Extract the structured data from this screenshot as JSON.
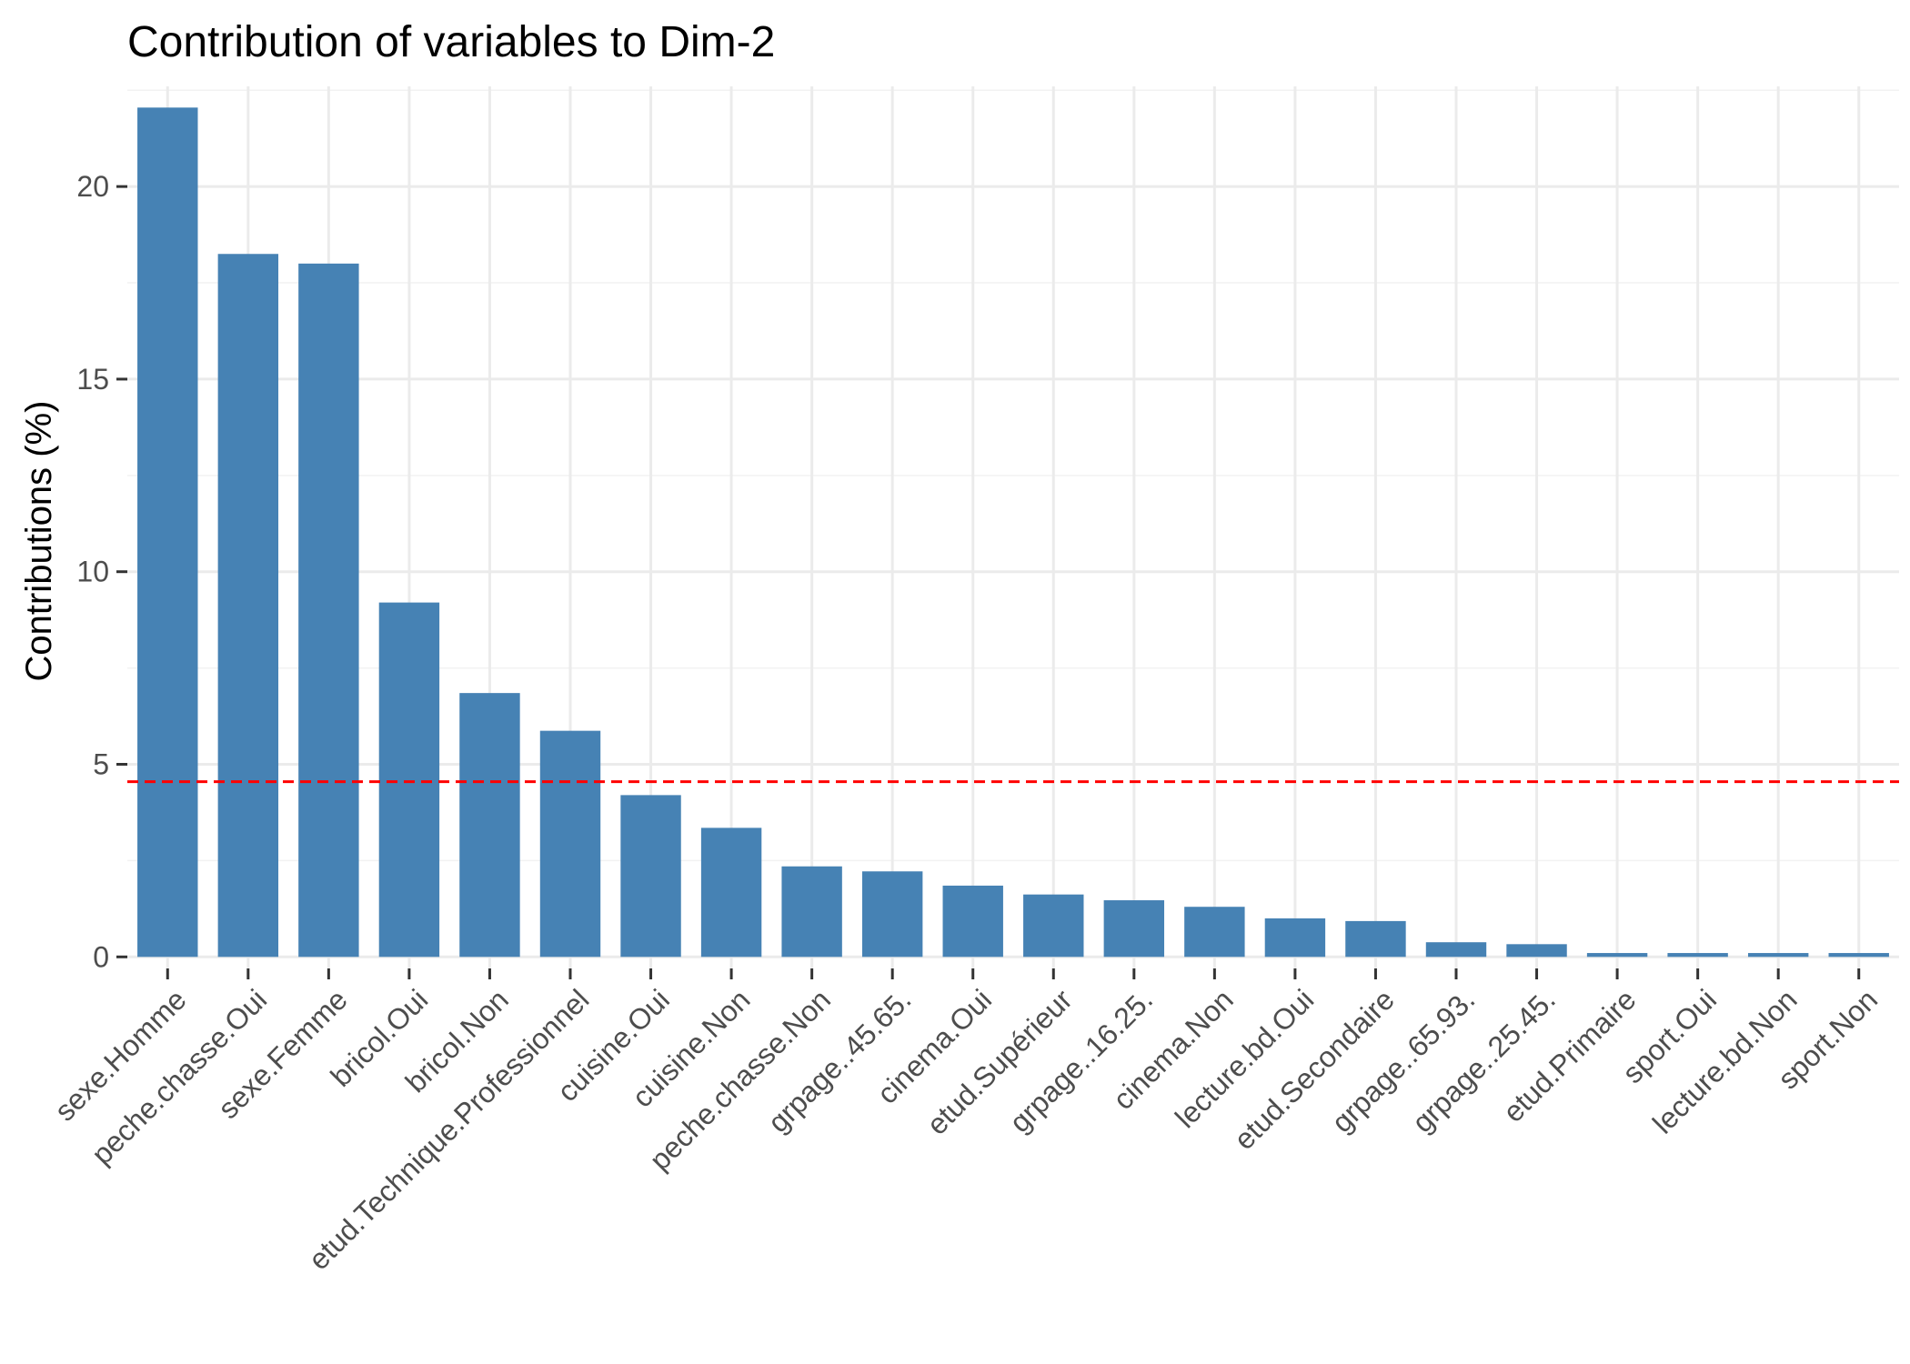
{
  "chart_data": {
    "type": "bar",
    "title": "Contribution of variables to Dim-2",
    "xlabel": "",
    "ylabel": "Contributions (%)",
    "categories": [
      "sexe.Homme",
      "peche.chasse.Oui",
      "sexe.Femme",
      "bricol.Oui",
      "bricol.Non",
      "etud.Technique.Professionnel",
      "cuisine.Oui",
      "cuisine.Non",
      "peche.chasse.Non",
      "grpage..45.65.",
      "cinema.Oui",
      "etud.Supérieur",
      "grpage..16.25.",
      "cinema.Non",
      "lecture.bd.Oui",
      "etud.Secondaire",
      "grpage..65.93.",
      "grpage..25.45.",
      "etud.Primaire",
      "sport.Oui",
      "lecture.bd.Non",
      "sport.Non"
    ],
    "values": [
      22.05,
      18.25,
      18.0,
      9.2,
      6.85,
      5.87,
      4.2,
      3.35,
      2.35,
      2.22,
      1.85,
      1.62,
      1.47,
      1.3,
      1.0,
      0.93,
      0.38,
      0.33,
      0.1,
      0.1,
      0.1,
      0.1
    ],
    "yticks": [
      0,
      5,
      10,
      15,
      20
    ],
    "ylim": [
      -0.3,
      22.6
    ],
    "reference_line": 4.55,
    "grid": true,
    "bar_color": "#4682B4",
    "reference_line_color": "#FF0000"
  }
}
